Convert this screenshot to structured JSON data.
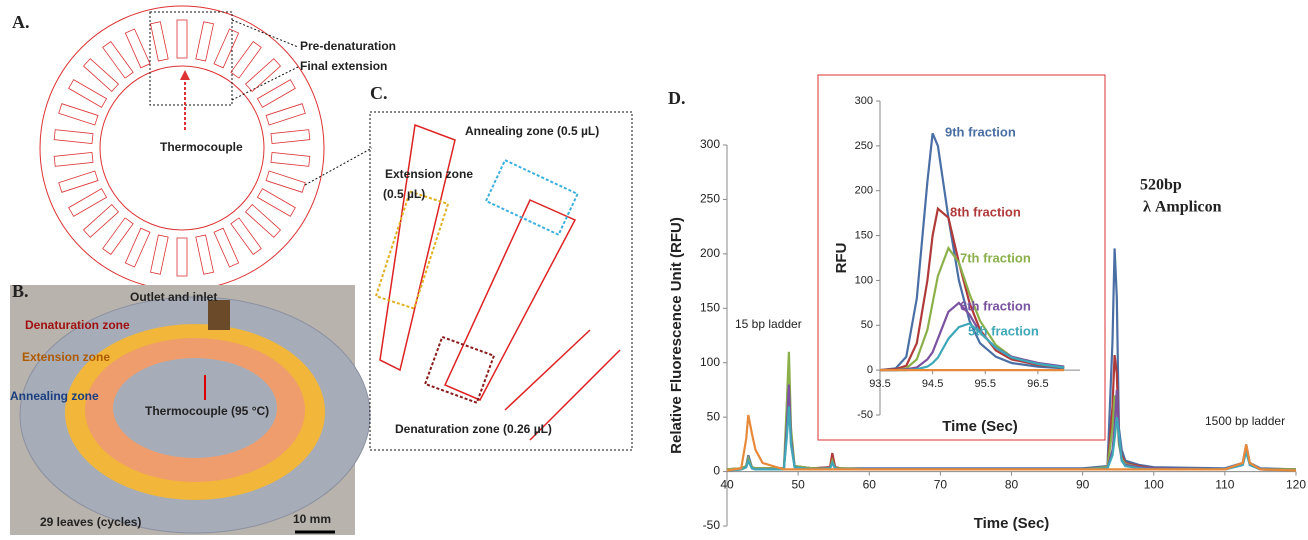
{
  "panel_a": {
    "letter": "A.",
    "callout": [
      "Pre-denaturation",
      "Final extension"
    ],
    "thermocouple": "Thermocouple"
  },
  "panel_b": {
    "letter": "B.",
    "labels": [
      "Outlet and inlet",
      "Denaturation zone",
      "Extension zone",
      "Annealing zone",
      "Thermocouple  (95 °C)",
      "29 leaves (cycles)",
      "10 mm"
    ]
  },
  "panel_c": {
    "letter": "C.",
    "annealing": "Annealing zone (0.5 µL)",
    "extension": [
      "Extension zone",
      "(0.5 µL)"
    ],
    "denaturation": "Denaturation zone (0.26 µL)"
  },
  "panel_d": {
    "letter": "D."
  },
  "chart_data": [
    {
      "type": "line",
      "x_label": "Time (Sec)",
      "y_label": "Relative Fluorescence Unit (RFU)",
      "annotations": [
        "15 bp ladder",
        "520bp",
        "λ Amplicon",
        "1500 bp ladder"
      ],
      "xlim": [
        40,
        120
      ],
      "xticks": [
        40,
        50,
        60,
        70,
        80,
        90,
        100,
        110,
        120
      ],
      "ylim": [
        -50,
        300
      ],
      "yticks": [
        -50,
        0,
        50,
        100,
        150,
        200,
        250,
        300
      ],
      "x": [
        40,
        42,
        42.7,
        43,
        43.5,
        44,
        45,
        48,
        48.4,
        48.7,
        49,
        49.5,
        52,
        54.5,
        54.8,
        55.2,
        56,
        60,
        70,
        80,
        90,
        93.5,
        94.2,
        94.5,
        94.8,
        95.1,
        95.5,
        96,
        98,
        100,
        110,
        112.5,
        113,
        113.5,
        115,
        120
      ],
      "series": [
        {
          "color": "#4a6fa5",
          "values": [
            2,
            3,
            5,
            15,
            4,
            3,
            3,
            3,
            40,
            85,
            30,
            5,
            3,
            4,
            15,
            4,
            3,
            3,
            3,
            3,
            3,
            5,
            120,
            205,
            160,
            40,
            20,
            10,
            6,
            4,
            3,
            8,
            25,
            8,
            3,
            2
          ]
        },
        {
          "color": "#b03a3a",
          "values": [
            2,
            3,
            5,
            12,
            4,
            3,
            3,
            3,
            35,
            75,
            25,
            5,
            3,
            4,
            17,
            4,
            3,
            2,
            2,
            2,
            2,
            4,
            60,
            107,
            90,
            30,
            15,
            8,
            5,
            3,
            2,
            7,
            22,
            7,
            2,
            2
          ]
        },
        {
          "color": "#8bb04a",
          "values": [
            2,
            3,
            5,
            12,
            4,
            3,
            3,
            3,
            60,
            110,
            40,
            5,
            3,
            3,
            10,
            3,
            3,
            2,
            2,
            2,
            2,
            4,
            40,
            70,
            60,
            25,
            12,
            7,
            4,
            3,
            2,
            7,
            22,
            7,
            2,
            2
          ]
        },
        {
          "color": "#7a52a0",
          "values": [
            1,
            2,
            4,
            10,
            3,
            2,
            2,
            2,
            40,
            80,
            30,
            4,
            2,
            3,
            8,
            3,
            2,
            2,
            2,
            2,
            2,
            3,
            20,
            40,
            75,
            30,
            10,
            6,
            4,
            3,
            2,
            6,
            20,
            6,
            2,
            1
          ]
        },
        {
          "color": "#3fa8b8",
          "values": [
            1,
            2,
            4,
            10,
            3,
            2,
            2,
            2,
            30,
            60,
            25,
            4,
            2,
            3,
            8,
            3,
            2,
            2,
            2,
            2,
            2,
            3,
            15,
            30,
            50,
            35,
            10,
            5,
            3,
            2,
            2,
            6,
            18,
            6,
            2,
            1
          ]
        },
        {
          "color": "#e8893a",
          "values": [
            1,
            3,
            30,
            52,
            35,
            20,
            8,
            2,
            2,
            2,
            2,
            2,
            2,
            2,
            2,
            2,
            2,
            2,
            2,
            2,
            2,
            2,
            2,
            2,
            2,
            2,
            2,
            2,
            2,
            2,
            2,
            8,
            25,
            8,
            2,
            1
          ]
        }
      ]
    },
    {
      "type": "line",
      "x_label": "Time (Sec)",
      "y_label": "RFU",
      "xlim": [
        93.5,
        97.3
      ],
      "xticks": [
        93.5,
        94.5,
        95.5,
        96.5
      ],
      "ylim": [
        -50,
        300
      ],
      "yticks": [
        -50,
        0,
        50,
        100,
        150,
        200,
        250,
        300
      ],
      "x": [
        93.5,
        93.8,
        94.0,
        94.2,
        94.4,
        94.5,
        94.6,
        94.8,
        95.0,
        95.2,
        95.4,
        95.7,
        96.0,
        96.5,
        97.0
      ],
      "series": [
        {
          "name": "9th fraction",
          "color": "#4a6fa5",
          "values": [
            0,
            2,
            15,
            80,
            210,
            264,
            250,
            170,
            100,
            55,
            30,
            15,
            8,
            4,
            2
          ]
        },
        {
          "name": "8th fraction",
          "color": "#b03a3a",
          "values": [
            0,
            1,
            5,
            30,
            100,
            150,
            180,
            170,
            120,
            75,
            45,
            22,
            12,
            6,
            3
          ]
        },
        {
          "name": "7th fraction",
          "color": "#8bb04a",
          "values": [
            0,
            0,
            2,
            12,
            45,
            75,
            105,
            136,
            120,
            85,
            55,
            28,
            15,
            7,
            3
          ]
        },
        {
          "name": "6th fraction",
          "color": "#7a52a0",
          "values": [
            0,
            0,
            1,
            3,
            12,
            20,
            35,
            65,
            75,
            62,
            42,
            25,
            15,
            8,
            4
          ]
        },
        {
          "name": "5th fraction",
          "color": "#3fa8b8",
          "values": [
            0,
            0,
            0,
            1,
            4,
            8,
            14,
            35,
            48,
            52,
            42,
            25,
            14,
            7,
            3
          ]
        },
        {
          "color": "#e8893a",
          "values": [
            0,
            0,
            0,
            0,
            0,
            0,
            0,
            0,
            0,
            0,
            0,
            0,
            0,
            0,
            0
          ]
        }
      ]
    }
  ]
}
